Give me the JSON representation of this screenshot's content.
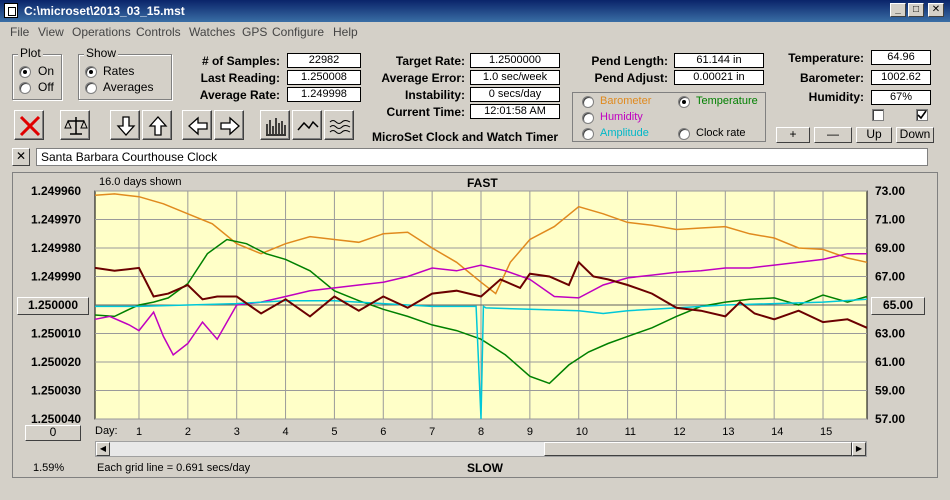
{
  "window": {
    "title": "C:\\microset\\2013_03_15.mst"
  },
  "menu": [
    "File",
    "View",
    "Operations",
    "Controls",
    "Watches",
    "GPS",
    "Configure",
    "Help"
  ],
  "plot_group": {
    "title": "Plot",
    "on": "On",
    "off": "Off",
    "selected": "On"
  },
  "show_group": {
    "title": "Show",
    "rates": "Rates",
    "averages": "Averages",
    "selected": "Rates"
  },
  "stats": {
    "samples_label": "# of Samples:",
    "samples": "22982",
    "last_label": "Last Reading:",
    "last": "1.250008",
    "avg_label": "Average Rate:",
    "avg": "1.249998"
  },
  "rates": {
    "target_label": "Target Rate:",
    "target": "1.2500000",
    "error_label": "Average Error:",
    "error": "1.0 sec/week",
    "instab_label": "Instability:",
    "instab": "0 secs/day",
    "time_label": "Current Time:",
    "time": "12:01:58 AM"
  },
  "app_name": "MicroSet Clock and Watch Timer",
  "pendulum": {
    "length_label": "Pend Length:",
    "length": "61.144 in",
    "adjust_label": "Pend Adjust:",
    "adjust": "0.00021 in"
  },
  "sensor_select": {
    "barometer": "Barometer",
    "temperature": "Temperature",
    "humidity": "Humidity",
    "amplitude": "Amplitude",
    "clock_rate": "Clock rate",
    "selected": "Temperature",
    "colors": {
      "barometer": "#e08a1e",
      "temperature": "#008000",
      "humidity": "#c000c0",
      "amplitude": "#00c8d8",
      "clock_rate": "#000000"
    }
  },
  "environment": {
    "temp_label": "Temperature:",
    "temp": "64.96",
    "baro_label": "Barometer:",
    "baro": "1002.62",
    "hum_label": "Humidity:",
    "hum": "67%"
  },
  "scale_buttons": {
    "plus": "+",
    "minus": "—",
    "up": "Up",
    "down": "Down"
  },
  "clock_name": "Santa Barbara Courthouse Clock",
  "close_x": "✕",
  "chart_data": {
    "type": "line",
    "top_label": "FAST",
    "bottom_label": "SLOW",
    "days_shown": "16.0 days shown",
    "grid_note": "Each grid line = 0.691 secs/day",
    "percent": "1.59%",
    "x_button": "0",
    "xlabel": "Day:",
    "x_ticks": [
      1,
      2,
      3,
      4,
      5,
      6,
      7,
      8,
      9,
      10,
      11,
      12,
      13,
      14,
      15
    ],
    "xlim": [
      0.1,
      15.9
    ],
    "left_axis": {
      "ticks": [
        "1.249960",
        "1.249970",
        "1.249980",
        "1.249990",
        "1.250000",
        "1.250010",
        "1.250020",
        "1.250030",
        "1.250040"
      ],
      "center": "1.250000",
      "ylim": [
        1.24996,
        1.25004
      ],
      "inverted": true
    },
    "right_axis": {
      "ticks": [
        "73.00",
        "71.00",
        "69.00",
        "67.00",
        "65.00",
        "63.00",
        "61.00",
        "59.00",
        "57.00"
      ],
      "center": "65.00",
      "ylim": [
        57,
        73
      ]
    },
    "series": [
      {
        "name": "Barometer",
        "color": "#e08a1e",
        "axis": "right",
        "x": [
          0.1,
          0.5,
          1.0,
          1.5,
          2.0,
          2.5,
          3.0,
          3.5,
          4.0,
          4.5,
          5.0,
          5.5,
          6.0,
          6.5,
          7.0,
          7.5,
          8.0,
          8.3,
          8.6,
          9.0,
          9.5,
          10.0,
          10.5,
          11.0,
          11.5,
          12.0,
          12.5,
          13.0,
          13.5,
          14.0,
          14.5,
          15.0,
          15.5,
          15.9
        ],
        "values": [
          72.7,
          72.8,
          72.6,
          72.1,
          71.4,
          70.7,
          69.3,
          68.6,
          69.3,
          69.8,
          69.6,
          69.4,
          70.0,
          70.1,
          69.0,
          68.0,
          66.6,
          65.8,
          68.0,
          69.6,
          70.5,
          71.9,
          71.4,
          70.8,
          70.6,
          70.3,
          70.4,
          70.5,
          70.0,
          69.7,
          69.0,
          68.9,
          68.3,
          68.0
        ]
      },
      {
        "name": "Temperature",
        "color": "#008000",
        "axis": "right",
        "x": [
          0.1,
          0.5,
          0.8,
          1.0,
          1.3,
          1.6,
          2.0,
          2.4,
          2.8,
          3.2,
          3.6,
          4.0,
          4.5,
          5.0,
          5.5,
          6.0,
          6.5,
          7.0,
          7.5,
          8.0,
          8.5,
          9.0,
          9.4,
          9.8,
          10.2,
          10.6,
          11.0,
          11.5,
          12.0,
          12.5,
          13.0,
          13.5,
          14.0,
          14.5,
          15.0,
          15.5,
          15.9
        ],
        "values": [
          64.3,
          64.2,
          64.7,
          65.0,
          65.2,
          65.5,
          66.5,
          68.6,
          69.6,
          69.3,
          68.6,
          68.2,
          67.4,
          66.0,
          65.3,
          64.7,
          64.2,
          63.6,
          63.2,
          62.6,
          61.5,
          60.0,
          59.5,
          60.8,
          61.7,
          62.3,
          62.8,
          63.4,
          64.2,
          64.9,
          65.2,
          65.4,
          65.5,
          65.0,
          65.7,
          65.2,
          65.6
        ]
      },
      {
        "name": "Humidity",
        "color": "#c000c0",
        "axis": "right",
        "x": [
          0.1,
          0.4,
          0.8,
          1.0,
          1.3,
          1.5,
          1.7,
          2.0,
          2.3,
          2.6,
          3.0,
          3.5,
          4.0,
          4.5,
          5.0,
          5.5,
          6.0,
          6.5,
          7.0,
          7.5,
          8.0,
          8.5,
          9.0,
          9.5,
          10.0,
          10.5,
          11.0,
          11.5,
          12.0,
          12.5,
          13.0,
          13.5,
          14.0,
          14.5,
          15.0,
          15.5,
          15.9
        ],
        "values": [
          64.0,
          64.2,
          63.6,
          63.2,
          64.5,
          62.8,
          61.5,
          62.3,
          63.8,
          62.6,
          65.0,
          65.2,
          65.6,
          66.0,
          66.2,
          66.4,
          66.6,
          67.0,
          67.6,
          67.4,
          67.8,
          67.4,
          66.8,
          65.6,
          65.5,
          66.4,
          66.9,
          67.1,
          67.3,
          67.4,
          67.6,
          67.6,
          67.8,
          68.0,
          68.2,
          68.6,
          68.6
        ]
      },
      {
        "name": "Amplitude",
        "color": "#00c8d8",
        "axis": "right",
        "x": [
          0.1,
          1.0,
          2.0,
          3.0,
          4.0,
          5.0,
          6.0,
          7.0,
          7.9,
          8.0,
          8.05,
          8.1,
          9.0,
          10.0,
          10.5,
          11.0,
          12.0,
          13.0,
          14.0,
          15.0,
          15.9
        ],
        "values": [
          64.9,
          64.9,
          65.0,
          65.1,
          65.3,
          65.3,
          65.1,
          64.9,
          64.9,
          57.0,
          64.9,
          64.8,
          64.7,
          64.6,
          64.4,
          64.6,
          64.8,
          65.0,
          65.1,
          65.2,
          65.4
        ]
      },
      {
        "name": "Clock rate",
        "color": "#6b0000",
        "axis": "left",
        "x": [
          0.1,
          0.5,
          1.0,
          1.3,
          1.6,
          2.0,
          2.3,
          2.6,
          3.0,
          3.5,
          4.0,
          4.5,
          5.0,
          5.5,
          6.0,
          6.5,
          7.0,
          7.5,
          8.0,
          8.4,
          8.8,
          9.0,
          9.4,
          9.8,
          10.0,
          10.3,
          10.6,
          11.0,
          11.5,
          12.0,
          12.5,
          13.0,
          13.3,
          13.6,
          14.0,
          14.5,
          15.0,
          15.5,
          15.9
        ],
        "values": [
          1.249987,
          1.249988,
          1.249987,
          1.249997,
          1.249996,
          1.249993,
          1.249998,
          1.249997,
          1.249997,
          1.250003,
          1.249998,
          1.250004,
          1.249997,
          1.250002,
          1.249997,
          1.250001,
          1.249996,
          1.249995,
          1.249997,
          1.249991,
          1.249994,
          1.249989,
          1.24999,
          1.249993,
          1.249985,
          1.24999,
          1.249991,
          1.249993,
          1.249996,
          1.250001,
          1.250002,
          1.250004,
          1.249999,
          1.250003,
          1.250005,
          1.250002,
          1.250006,
          1.250005,
          1.250008
        ]
      }
    ],
    "grid": true,
    "background": "#ffffc8"
  }
}
